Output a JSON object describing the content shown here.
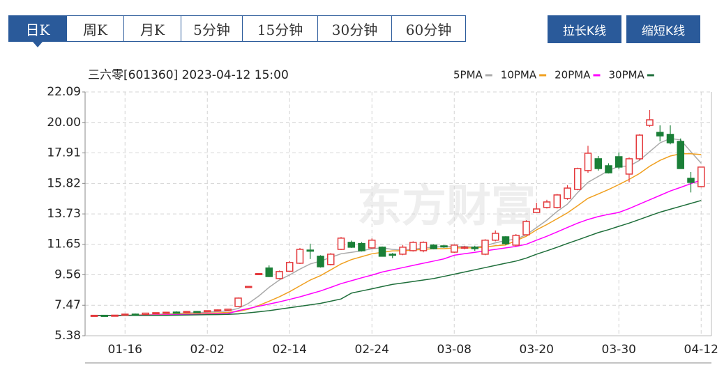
{
  "tabs": [
    "日K",
    "周K",
    "月K",
    "5分钟",
    "15分钟",
    "30分钟",
    "60分钟"
  ],
  "buttons": [
    "拉长K线",
    "缩短K线"
  ],
  "chart_data": {
    "type": "candlestick",
    "title": "三六零[601360] 2023-04-12 15:00",
    "watermark": "东方财富",
    "ylim": [
      5.38,
      22.09
    ],
    "yticks": [
      5.38,
      7.47,
      9.56,
      11.65,
      13.73,
      15.82,
      17.91,
      {
        "value": 20,
        "label": "20.00"
      },
      22.09
    ],
    "grid": true,
    "up_color": "#e4393c",
    "down_color": "#1a7f37",
    "categories": [
      null,
      null,
      null,
      "01-16",
      null,
      null,
      null,
      null,
      null,
      null,
      null,
      "02-02",
      null,
      null,
      null,
      null,
      null,
      null,
      null,
      "02-14",
      null,
      null,
      null,
      null,
      null,
      null,
      null,
      "02-24",
      null,
      null,
      null,
      null,
      null,
      null,
      null,
      "03-08",
      null,
      null,
      null,
      null,
      null,
      null,
      null,
      "03-20",
      null,
      null,
      null,
      null,
      null,
      null,
      null,
      "03-30",
      null,
      null,
      null,
      null,
      null,
      null,
      null,
      "04-12"
    ],
    "ohlc": [
      [
        6.77,
        6.8,
        6.74,
        6.78
      ],
      [
        6.78,
        6.81,
        6.75,
        6.77
      ],
      [
        6.77,
        6.8,
        6.74,
        6.79
      ],
      [
        6.8,
        6.88,
        6.78,
        6.86
      ],
      [
        6.86,
        6.9,
        6.8,
        6.83
      ],
      [
        6.84,
        6.95,
        6.82,
        6.93
      ],
      [
        6.93,
        6.98,
        6.88,
        6.96
      ],
      [
        6.96,
        7.02,
        6.92,
        6.99
      ],
      [
        7.0,
        7.05,
        6.94,
        6.97
      ],
      [
        6.97,
        7.06,
        6.95,
        7.04
      ],
      [
        7.04,
        7.08,
        6.98,
        7.02
      ],
      [
        7.02,
        7.12,
        7.0,
        7.1
      ],
      [
        7.1,
        7.18,
        7.05,
        7.15
      ],
      [
        7.12,
        7.22,
        7.08,
        7.2
      ],
      [
        7.39,
        8.0,
        7.35,
        7.96
      ],
      [
        8.76,
        8.76,
        8.76,
        8.76
      ],
      [
        9.64,
        9.64,
        9.64,
        9.64
      ],
      [
        10.02,
        10.2,
        9.4,
        9.44
      ],
      [
        9.3,
        9.85,
        9.25,
        9.78
      ],
      [
        9.8,
        10.5,
        9.75,
        10.4
      ],
      [
        10.35,
        11.4,
        10.3,
        11.3
      ],
      [
        11.25,
        11.69,
        10.64,
        11.2
      ],
      [
        10.83,
        10.9,
        10.05,
        10.11
      ],
      [
        10.26,
        11.05,
        10.2,
        10.97
      ],
      [
        11.3,
        12.15,
        11.25,
        12.07
      ],
      [
        11.78,
        11.9,
        11.4,
        11.45
      ],
      [
        11.7,
        11.8,
        11.15,
        11.21
      ],
      [
        11.4,
        12.05,
        11.35,
        11.93
      ],
      [
        11.45,
        11.5,
        10.8,
        10.83
      ],
      [
        10.97,
        11.05,
        10.7,
        10.95
      ],
      [
        10.97,
        11.6,
        10.9,
        11.45
      ],
      [
        11.21,
        11.85,
        11.15,
        11.78
      ],
      [
        11.21,
        11.85,
        11.1,
        11.78
      ],
      [
        11.59,
        11.65,
        11.3,
        11.35
      ],
      [
        11.54,
        11.6,
        11.4,
        11.48
      ],
      [
        11.11,
        11.65,
        11.05,
        11.59
      ],
      [
        11.4,
        11.55,
        11.3,
        11.45
      ],
      [
        11.45,
        11.55,
        11.2,
        11.35
      ],
      [
        10.97,
        12.0,
        10.9,
        11.93
      ],
      [
        11.93,
        12.6,
        11.85,
        12.4
      ],
      [
        12.16,
        12.2,
        11.6,
        11.69
      ],
      [
        11.59,
        12.35,
        11.5,
        12.26
      ],
      [
        12.3,
        13.3,
        12.25,
        13.21
      ],
      [
        13.83,
        14.5,
        13.8,
        14.07
      ],
      [
        14.17,
        14.7,
        14.1,
        14.55
      ],
      [
        14.17,
        15.1,
        14.1,
        15.03
      ],
      [
        14.79,
        15.7,
        14.7,
        15.5
      ],
      [
        15.41,
        16.9,
        15.35,
        16.84
      ],
      [
        16.7,
        18.4,
        16.55,
        17.89
      ],
      [
        17.51,
        17.7,
        16.7,
        16.84
      ],
      [
        17.03,
        17.2,
        16.5,
        16.55
      ],
      [
        17.65,
        17.95,
        16.8,
        16.94
      ],
      [
        16.46,
        17.6,
        15.9,
        17.51
      ],
      [
        17.51,
        19.2,
        17.4,
        19.13
      ],
      [
        19.8,
        20.85,
        19.7,
        20.18
      ],
      [
        19.32,
        19.8,
        18.7,
        19.08
      ],
      [
        19.18,
        19.8,
        18.5,
        18.61
      ],
      [
        18.7,
        18.9,
        16.84,
        16.84
      ],
      [
        16.17,
        16.6,
        15.2,
        15.89
      ],
      [
        15.6,
        16.9,
        15.55,
        16.94
      ]
    ],
    "series": [
      {
        "name": "5PMA",
        "color": "#aaaaaa",
        "values": [
          6.77,
          6.77,
          6.78,
          6.79,
          6.8,
          6.82,
          6.85,
          6.88,
          6.91,
          6.94,
          6.97,
          7.0,
          7.04,
          7.08,
          7.25,
          7.6,
          8.1,
          8.7,
          9.2,
          9.55,
          9.95,
          10.3,
          10.5,
          10.75,
          11.0,
          11.1,
          11.2,
          11.35,
          11.4,
          11.3,
          11.25,
          11.3,
          11.4,
          11.45,
          11.5,
          11.5,
          11.5,
          11.45,
          11.55,
          11.75,
          11.9,
          12.0,
          12.3,
          12.8,
          13.3,
          13.9,
          14.4,
          15.2,
          15.9,
          16.3,
          16.7,
          17.0,
          17.0,
          17.4,
          18.0,
          18.6,
          18.9,
          18.8,
          18.0,
          17.2
        ]
      },
      {
        "name": "10PMA",
        "color": "#f0a020",
        "values": [
          6.77,
          6.77,
          6.77,
          6.78,
          6.79,
          6.8,
          6.81,
          6.83,
          6.85,
          6.87,
          6.89,
          6.92,
          6.95,
          6.98,
          7.05,
          7.2,
          7.45,
          7.75,
          8.05,
          8.4,
          8.8,
          9.2,
          9.5,
          9.9,
          10.3,
          10.6,
          10.8,
          11.0,
          11.1,
          11.2,
          11.2,
          11.25,
          11.3,
          11.35,
          11.35,
          11.4,
          11.4,
          11.4,
          11.45,
          11.55,
          11.6,
          11.9,
          12.2,
          12.64,
          13.0,
          13.4,
          13.8,
          14.3,
          14.8,
          15.1,
          15.4,
          15.74,
          16.1,
          16.5,
          17.0,
          17.4,
          17.7,
          17.85,
          17.85,
          17.8
        ]
      },
      {
        "name": "20PMA",
        "color": "#ff00ff",
        "values": [
          6.77,
          6.77,
          6.77,
          6.78,
          6.78,
          6.79,
          6.8,
          6.81,
          6.82,
          6.83,
          6.84,
          6.86,
          6.88,
          6.9,
          7.1,
          7.25,
          7.4,
          7.55,
          7.7,
          7.87,
          8.05,
          8.25,
          8.45,
          8.7,
          8.95,
          9.15,
          9.35,
          9.54,
          9.75,
          9.9,
          10.05,
          10.2,
          10.35,
          10.5,
          10.65,
          10.9,
          11.0,
          11.1,
          11.2,
          11.3,
          11.4,
          11.5,
          11.65,
          11.93,
          12.2,
          12.5,
          12.8,
          13.1,
          13.35,
          13.55,
          13.7,
          13.83,
          14.1,
          14.4,
          14.7,
          15.0,
          15.3,
          15.55,
          15.8,
          16.05
        ]
      },
      {
        "name": "30PMA",
        "color": "#1e6e3a",
        "values": [
          6.77,
          6.77,
          6.77,
          6.77,
          6.77,
          6.77,
          6.78,
          6.78,
          6.79,
          6.8,
          6.81,
          6.82,
          6.83,
          6.85,
          6.88,
          6.95,
          7.02,
          7.1,
          7.2,
          7.3,
          7.4,
          7.5,
          7.6,
          7.75,
          7.9,
          8.3,
          8.45,
          8.6,
          8.75,
          8.9,
          9.0,
          9.1,
          9.2,
          9.3,
          9.45,
          9.6,
          9.75,
          9.9,
          10.05,
          10.2,
          10.35,
          10.5,
          10.7,
          10.97,
          11.2,
          11.45,
          11.7,
          11.95,
          12.2,
          12.45,
          12.65,
          12.88,
          13.1,
          13.35,
          13.6,
          13.85,
          14.05,
          14.25,
          14.45,
          14.65
        ]
      }
    ]
  }
}
